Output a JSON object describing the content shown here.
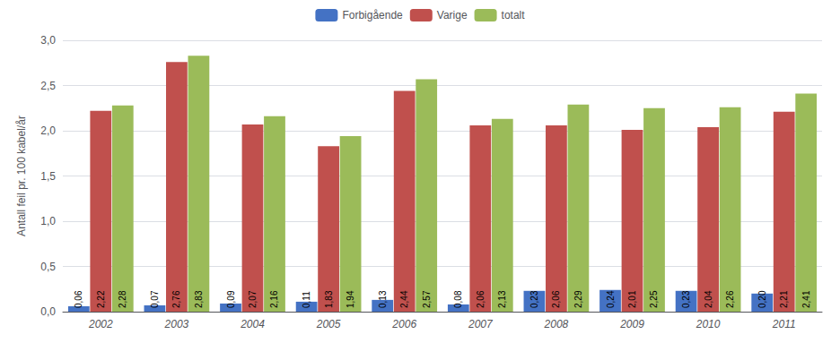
{
  "chart_data": {
    "type": "bar",
    "categories": [
      "2002",
      "2003",
      "2004",
      "2005",
      "2006",
      "2007",
      "2008",
      "2009",
      "2010",
      "2011"
    ],
    "series": [
      {
        "name": "Forbigående",
        "color": "#4472C4",
        "values": [
          0.06,
          0.07,
          0.09,
          0.11,
          0.13,
          0.08,
          0.23,
          0.24,
          0.23,
          0.2
        ],
        "value_labels": [
          "0,06",
          "0,07",
          "0,09",
          "0,11",
          "0,13",
          "0,08",
          "0,23",
          "0,24",
          "0,23",
          "0,20"
        ]
      },
      {
        "name": "Varige",
        "color": "#C0504D",
        "values": [
          2.22,
          2.76,
          2.07,
          1.83,
          2.44,
          2.06,
          2.06,
          2.01,
          2.04,
          2.21
        ],
        "value_labels": [
          "2,22",
          "2,76",
          "2,07",
          "1,83",
          "2,44",
          "2,06",
          "2,06",
          "2,01",
          "2,04",
          "2,21"
        ]
      },
      {
        "name": "totalt",
        "color": "#9BBB59",
        "values": [
          2.28,
          2.83,
          2.16,
          1.94,
          2.57,
          2.13,
          2.29,
          2.25,
          2.26,
          2.41
        ],
        "value_labels": [
          "2,28",
          "2,83",
          "2,16",
          "1,94",
          "2,57",
          "2,13",
          "2,29",
          "2,25",
          "2,26",
          "2,41"
        ]
      }
    ],
    "ylabel": "Antall feil pr. 100 kabel/år",
    "ylim": [
      0,
      3.0
    ],
    "yticks": [
      {
        "value": 0.0,
        "label": "0,0"
      },
      {
        "value": 0.5,
        "label": "0,5"
      },
      {
        "value": 1.0,
        "label": "1,0"
      },
      {
        "value": 1.5,
        "label": "1,5"
      },
      {
        "value": 2.0,
        "label": "2,0"
      },
      {
        "value": 2.5,
        "label": "2,5"
      },
      {
        "value": 3.0,
        "label": "3,0"
      }
    ],
    "grid": true,
    "legend": "top",
    "data_labels": true
  }
}
